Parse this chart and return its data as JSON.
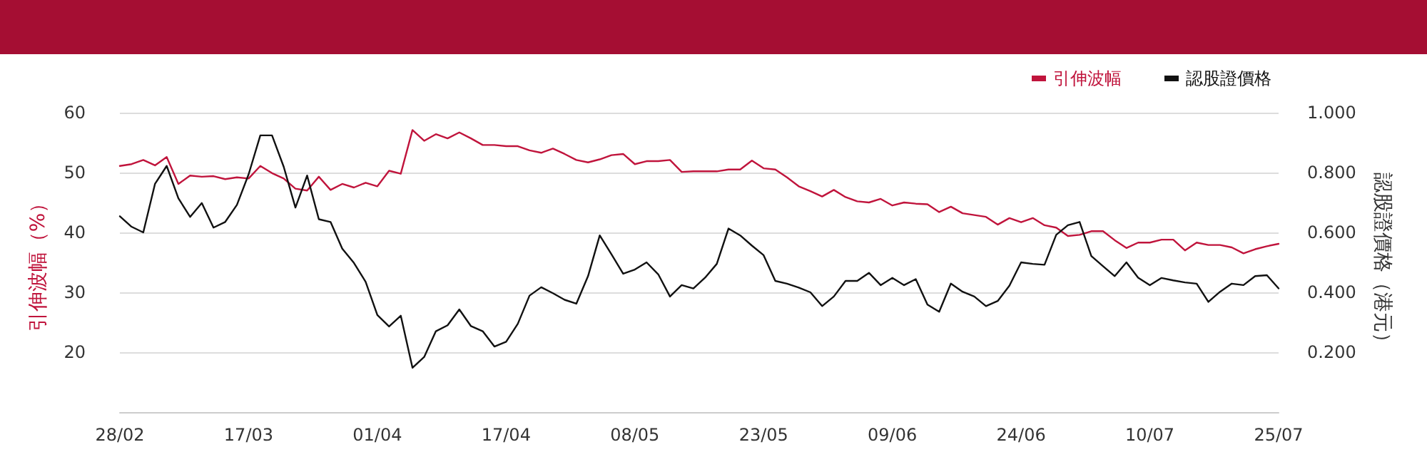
{
  "chart_data": {
    "type": "line",
    "ylabel": "引伸波幅（%）",
    "y2label": "認股證價格（港元）",
    "categories": [
      "28/02",
      null,
      null,
      null,
      null,
      null,
      null,
      null,
      null,
      null,
      null,
      "17/03",
      null,
      null,
      null,
      null,
      null,
      null,
      null,
      null,
      null,
      null,
      "01/04",
      null,
      null,
      null,
      null,
      null,
      null,
      null,
      null,
      null,
      null,
      "17/04",
      null,
      null,
      null,
      null,
      null,
      null,
      null,
      null,
      null,
      null,
      "08/05",
      null,
      null,
      null,
      null,
      null,
      null,
      null,
      null,
      null,
      null,
      "23/05",
      null,
      null,
      null,
      null,
      null,
      null,
      null,
      null,
      null,
      null,
      "09/06",
      null,
      null,
      null,
      null,
      null,
      null,
      null,
      null,
      null,
      null,
      "24/06",
      null,
      null,
      null,
      null,
      null,
      null,
      null,
      null,
      null,
      null,
      "10/07",
      null,
      null,
      null,
      null,
      null,
      null,
      null,
      null,
      null,
      null,
      "25/07"
    ],
    "series": [
      {
        "name": "引伸波幅",
        "color": "#c0143c",
        "values": [
          51.1,
          51.4,
          52.1,
          51.2,
          52.6,
          48.1,
          49.5,
          49.3,
          49.4,
          48.9,
          49.2,
          49.0,
          51.1,
          49.9,
          49.0,
          47.3,
          47.0,
          49.3,
          47.1,
          48.1,
          47.5,
          48.3,
          47.7,
          50.3,
          49.8,
          57.1,
          55.3,
          56.4,
          55.7,
          56.7,
          55.7,
          54.6,
          54.6,
          54.4,
          54.4,
          53.7,
          53.3,
          54.0,
          53.1,
          52.1,
          51.7,
          52.2,
          52.9,
          53.1,
          51.4,
          51.9,
          51.9,
          52.1,
          50.1,
          50.2,
          50.2,
          50.2,
          50.5,
          50.5,
          52.0,
          50.7,
          50.5,
          49.2,
          47.7,
          46.9,
          46.0,
          47.1,
          45.9,
          45.2,
          45.0,
          45.6,
          44.5,
          45.0,
          44.8,
          44.7,
          43.4,
          44.3,
          43.2,
          42.9,
          42.6,
          41.3,
          42.4,
          41.7,
          42.4,
          41.2,
          40.8,
          39.4,
          39.6,
          40.2,
          40.2,
          38.7,
          37.4,
          38.3,
          38.3,
          38.8,
          38.8,
          37.0,
          38.3,
          37.9,
          37.9,
          37.5,
          36.5,
          37.2,
          37.7,
          38.1
        ]
      },
      {
        "name": "認股證價格",
        "color": "#111111",
        "axis": "y2",
        "values": [
          0.654,
          0.619,
          0.6,
          0.762,
          0.822,
          0.714,
          0.652,
          0.698,
          0.616,
          0.635,
          0.692,
          0.794,
          0.924,
          0.924,
          0.819,
          0.683,
          0.79,
          0.644,
          0.635,
          0.546,
          0.498,
          0.435,
          0.324,
          0.286,
          0.322,
          0.148,
          0.184,
          0.27,
          0.29,
          0.343,
          0.287,
          0.27,
          0.219,
          0.235,
          0.295,
          0.389,
          0.417,
          0.397,
          0.375,
          0.362,
          0.454,
          0.59,
          0.527,
          0.462,
          0.476,
          0.5,
          0.46,
          0.386,
          0.424,
          0.413,
          0.449,
          0.495,
          0.613,
          0.59,
          0.556,
          0.524,
          0.438,
          0.429,
          0.416,
          0.4,
          0.354,
          0.386,
          0.438,
          0.438,
          0.465,
          0.424,
          0.448,
          0.424,
          0.444,
          0.359,
          0.335,
          0.429,
          0.402,
          0.386,
          0.354,
          0.371,
          0.422,
          0.5,
          0.495,
          0.492,
          0.592,
          0.624,
          0.635,
          0.521,
          0.487,
          0.454,
          0.5,
          0.449,
          0.424,
          0.448,
          0.44,
          0.433,
          0.429,
          0.368,
          0.402,
          0.429,
          0.424,
          0.454,
          0.457,
          0.413
        ]
      }
    ],
    "ylim": [
      10,
      60
    ],
    "yticks": [
      20,
      30,
      40,
      50,
      60
    ],
    "y2lim": [
      0,
      1
    ],
    "y2ticks": [
      {
        "value": 0.2,
        "label": "0.200"
      },
      {
        "value": 0.4,
        "label": "0.400"
      },
      {
        "value": 0.6,
        "label": "0.600"
      },
      {
        "value": 0.8,
        "label": "0.800"
      },
      {
        "value": 1,
        "label": "1.000"
      }
    ],
    "grid": "y",
    "legend": "top right"
  }
}
